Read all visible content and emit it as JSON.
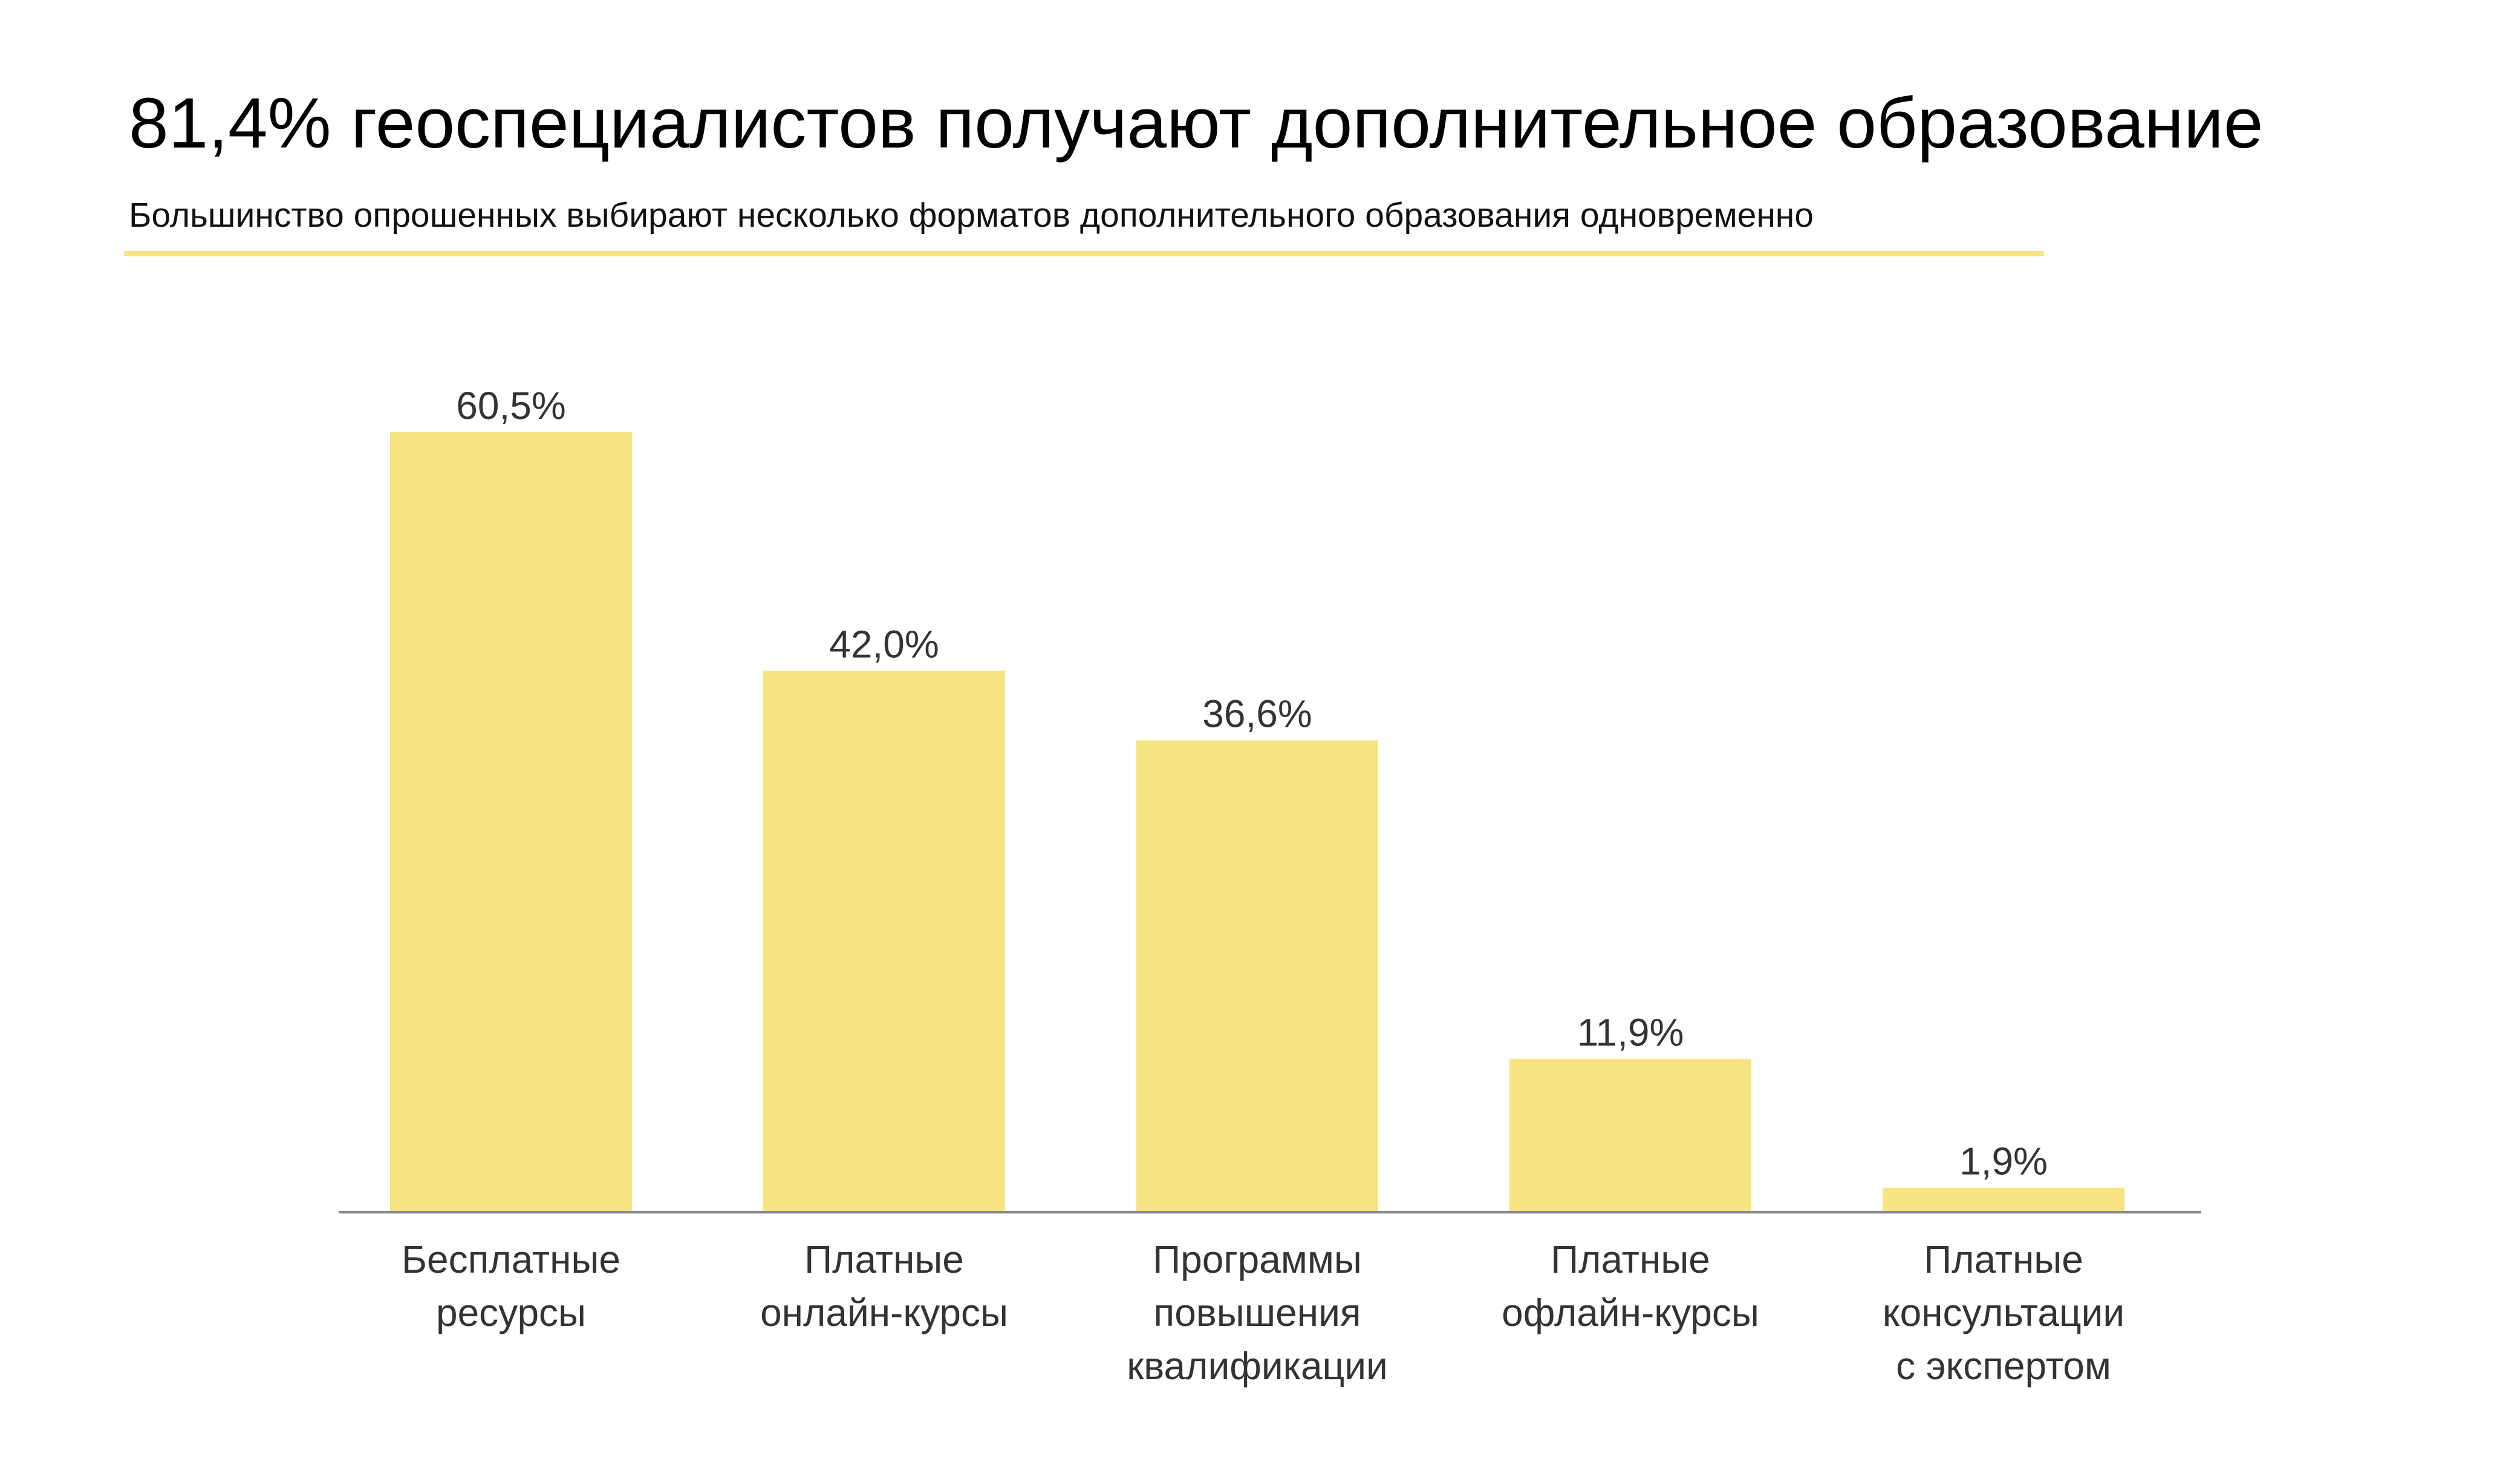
{
  "header": {
    "title": "81,4% геоспециалистов получают дополнительное образование",
    "subtitle": "Большинство опрошенных выбирают несколько форматов дополнительного образования одновременно"
  },
  "colors": {
    "bar": "#f6e382",
    "underline": "#f6e382",
    "axis": "#8a8a8a",
    "label": "#333333"
  },
  "chart_data": {
    "type": "bar",
    "title": "",
    "xlabel": "",
    "ylabel": "",
    "ylim": [
      0,
      65
    ],
    "grid": false,
    "legend": "none",
    "categories": [
      [
        "Бесплатные",
        "ресурсы"
      ],
      [
        "Платные",
        "онлайн-курсы"
      ],
      [
        "Программы",
        "повышения",
        "квалификации"
      ],
      [
        "Платные",
        "офлайн-курсы"
      ],
      [
        "Платные",
        "консультации",
        "с экспертом"
      ]
    ],
    "values": [
      60.5,
      42.0,
      36.6,
      11.9,
      1.9
    ],
    "value_labels": [
      "60,5%",
      "42,0%",
      "36,6%",
      "11,9%",
      "1,9%"
    ]
  }
}
